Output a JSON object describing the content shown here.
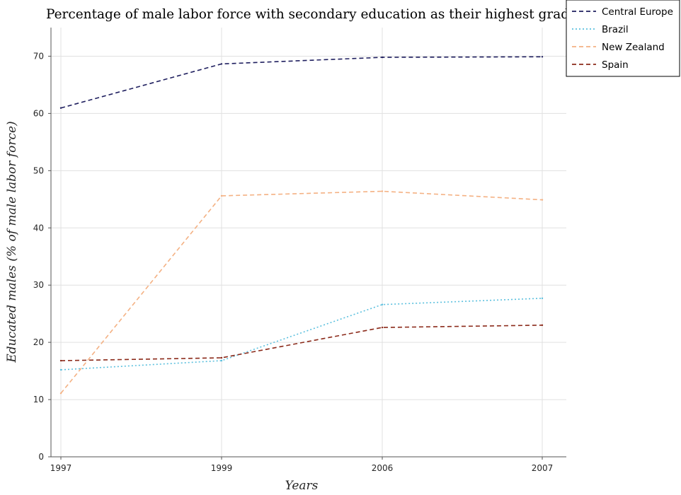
{
  "chart_data": {
    "type": "line",
    "title": "Percentage of male labor force with secondary education as their highest grade",
    "xlabel": "Years",
    "ylabel": "Educated males (% of male labor force)",
    "categories": [
      "1997",
      "1999",
      "2006",
      "2007"
    ],
    "ylim": [
      0,
      75
    ],
    "yticks": [
      0,
      10,
      20,
      30,
      40,
      50,
      60,
      70
    ],
    "grid": true,
    "legend_position": "top-right",
    "series": [
      {
        "name": "Central Europe",
        "color": "#1f1f5f",
        "dash": "6,4",
        "values": [
          60.95,
          68.65,
          69.8,
          69.9
        ]
      },
      {
        "name": "Brazil",
        "color": "#5bc0de",
        "dash": "2,3",
        "values": [
          15.2,
          16.8,
          26.6,
          27.7
        ]
      },
      {
        "name": "New Zealand",
        "color": "#f4b183",
        "dash": "6,4",
        "values": [
          11.1,
          45.6,
          46.4,
          44.9
        ]
      },
      {
        "name": "Spain",
        "color": "#8b2a1a",
        "dash": "6,4",
        "values": [
          16.8,
          17.3,
          22.6,
          23.0
        ]
      }
    ]
  }
}
